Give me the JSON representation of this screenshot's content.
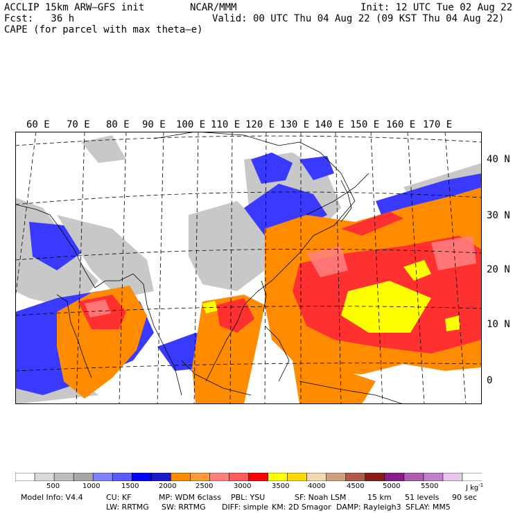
{
  "header": {
    "model": "ACCLIP 15km ARW–GFS init",
    "center": "NCAR/MMM",
    "init": "Init: 12 UTC Tue 02 Aug 22",
    "fcst": "Fcst:   36 h",
    "valid": "Valid: 00 UTC Thu 04 Aug 22 (09 KST Thu 04 Aug 22)",
    "field": "CAPE (for parcel with max theta–e)"
  },
  "map": {
    "lon_labels": [
      "60 E",
      "70 E",
      "80 E",
      "90 E",
      "100 E",
      "110 E",
      "120 E",
      "130 E",
      "140 E",
      "150 E",
      "160 E",
      "170 E"
    ],
    "lat_labels": [
      "40 N",
      "30 N",
      "20 N",
      "10 N",
      "0"
    ]
  },
  "colorbar": {
    "colors": [
      "#ffffff",
      "#d9d9d9",
      "#bebebe",
      "#a6a6a6",
      "#8080ff",
      "#5a5aff",
      "#0000ff",
      "#1a1acc",
      "#ff8c00",
      "#ff9a33",
      "#ff7f7f",
      "#ff5a5a",
      "#ff0000",
      "#ffff00",
      "#ffd700",
      "#f0d8b0",
      "#d2a080",
      "#b05a48",
      "#8b1a1a",
      "#8b1a8b",
      "#b05ab0",
      "#c080d0",
      "#e6c8ea",
      "#ffffff"
    ],
    "labels": [
      "500",
      "1000",
      "1500",
      "2000",
      "2500",
      "3000",
      "3500",
      "4000",
      "4500",
      "5000",
      "5500"
    ],
    "unit": "J kg"
  },
  "footer": {
    "line1": [
      {
        "text": "Model Info: V4.4"
      },
      {
        "text": "CU: KF"
      },
      {
        "text": "MP: WDM 6class"
      },
      {
        "text": "PBL: YSU"
      },
      {
        "text": "SF: Noah LSM"
      },
      {
        "text": "15 km"
      },
      {
        "text": "51 levels"
      },
      {
        "text": "90 sec"
      }
    ],
    "line2": [
      {
        "text": "LW: RRTMG"
      },
      {
        "text": "SW: RRTMG"
      },
      {
        "text": "DIFF: simple"
      },
      {
        "text": "KM: 2D Smagor"
      },
      {
        "text": "DAMP: Rayleigh3"
      },
      {
        "text": "SFLAY: MM5"
      }
    ]
  }
}
